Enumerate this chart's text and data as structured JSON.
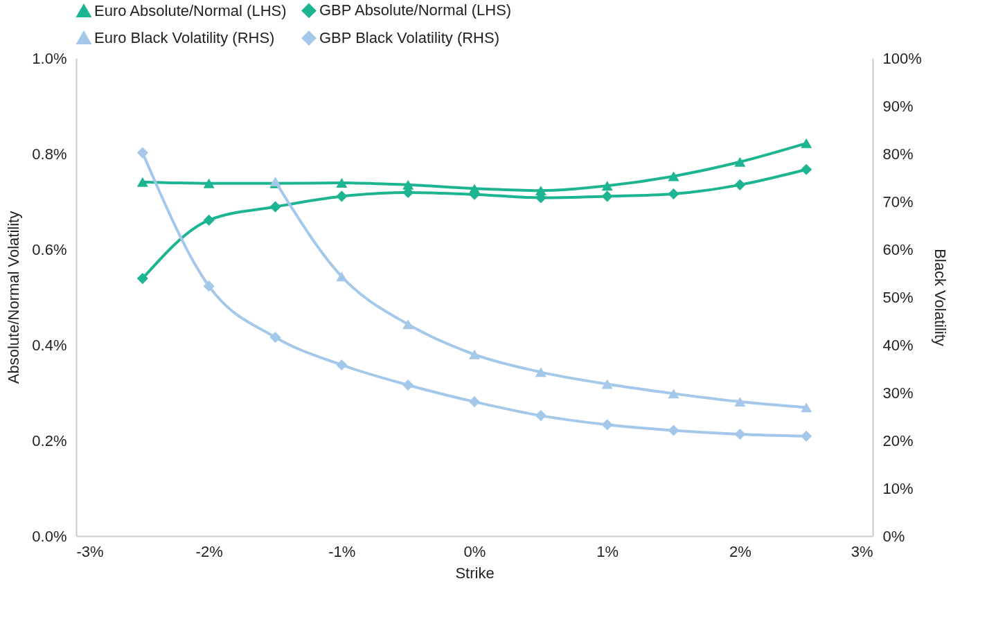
{
  "chart_data": {
    "type": "line",
    "xlabel": "Strike",
    "ylabel": "Absolute/Normal Volatility",
    "y2label": "Black Volatility",
    "x": [
      -2.5,
      -2,
      -1.5,
      -1,
      -0.5,
      0,
      0.5,
      1,
      1.5,
      2,
      2.5
    ],
    "series": [
      {
        "name": "Euro Absolute/Normal (LHS)",
        "color": "#1db591",
        "marker": "triangle",
        "values": [
          0.741,
          0.738,
          0.738,
          0.739,
          0.735,
          0.727,
          0.723,
          0.733,
          0.753,
          0.783,
          0.822
        ]
      },
      {
        "name": "GBP Absolute/Normal (LHS)",
        "color": "#1db591",
        "marker": "diamond",
        "values": [
          0.539,
          0.661,
          0.689,
          0.711,
          0.719,
          0.715,
          0.708,
          0.711,
          0.716,
          0.735,
          0.767
        ]
      },
      {
        "name": "Euro Black Volatility (RHS)",
        "color": "#a3c8ea",
        "marker": "triangle",
        "axis": "y2",
        "values": [
          null,
          null,
          74.2,
          54.3,
          44.3,
          38.0,
          34.3,
          31.8,
          29.8,
          28.1,
          26.9
        ]
      },
      {
        "name": "GBP Black Volatility (RHS)",
        "color": "#a3c8ea",
        "marker": "diamond",
        "axis": "y2",
        "values": [
          80.2,
          52.3,
          41.6,
          35.8,
          31.6,
          28.1,
          25.2,
          23.3,
          22.1,
          21.3,
          20.9
        ]
      }
    ],
    "xlim": [
      -3,
      3
    ],
    "xticks": [
      {
        "value": -3,
        "label": "-3%"
      },
      {
        "value": -2,
        "label": "-2%"
      },
      {
        "value": -1,
        "label": "-1%"
      },
      {
        "value": 0,
        "label": "0%"
      },
      {
        "value": 1,
        "label": "1%"
      },
      {
        "value": 2,
        "label": "2%"
      },
      {
        "value": 3,
        "label": "3%"
      }
    ],
    "ylim": [
      0,
      1
    ],
    "yticks": [
      {
        "value": 0,
        "label": "0.0%"
      },
      {
        "value": 0.2,
        "label": "0.2%"
      },
      {
        "value": 0.4,
        "label": "0.4%"
      },
      {
        "value": 0.6,
        "label": "0.6%"
      },
      {
        "value": 0.8,
        "label": "0.8%"
      },
      {
        "value": 1,
        "label": "1.0%"
      }
    ],
    "y2lim": [
      0,
      100
    ],
    "y2ticks": [
      {
        "value": 0,
        "label": "0%"
      },
      {
        "value": 10,
        "label": "10%"
      },
      {
        "value": 20,
        "label": "20%"
      },
      {
        "value": 30,
        "label": "30%"
      },
      {
        "value": 40,
        "label": "40%"
      },
      {
        "value": 50,
        "label": "50%"
      },
      {
        "value": 60,
        "label": "60%"
      },
      {
        "value": 70,
        "label": "70%"
      },
      {
        "value": 80,
        "label": "80%"
      },
      {
        "value": 90,
        "label": "90%"
      },
      {
        "value": 100,
        "label": "100%"
      }
    ],
    "grid": false,
    "legend": "top left",
    "line_style": "solid"
  }
}
